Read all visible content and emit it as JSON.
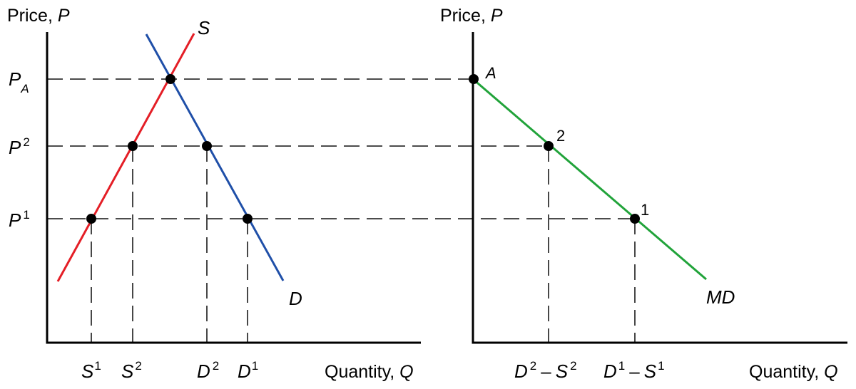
{
  "left_panel": {
    "y_axis_title": "Price,",
    "y_axis_symbol": "P",
    "x_axis_title": "Quantity,",
    "x_axis_symbol": "Q",
    "price_labels": {
      "pa": {
        "base": "P",
        "sub": "A"
      },
      "p2": {
        "base": "P",
        "sup": "2"
      },
      "p1": {
        "base": "P",
        "sup": "1"
      }
    },
    "quantity_labels": {
      "s1": {
        "base": "S",
        "sup": "1"
      },
      "s2": {
        "base": "S",
        "sup": "2"
      },
      "d2": {
        "base": "D",
        "sup": "2"
      },
      "d1": {
        "base": "D",
        "sup": "1"
      }
    },
    "supply_label": "S",
    "demand_label": "D"
  },
  "right_panel": {
    "y_axis_title": "Price,",
    "y_axis_symbol": "P",
    "x_axis_title": "Quantity,",
    "x_axis_symbol": "Q",
    "quantity_labels": {
      "q2": {
        "a": "D",
        "a_sup": "2",
        "op": "–",
        "b": "S",
        "b_sup": "2"
      },
      "q1": {
        "a": "D",
        "a_sup": "1",
        "op": "–",
        "b": "S",
        "b_sup": "1"
      }
    },
    "curve_label": "MD",
    "point_labels": {
      "a": "A",
      "two": "2",
      "one": "1"
    }
  },
  "colors": {
    "supply": "#e41e26",
    "demand": "#1f4fa8",
    "import_demand": "#21a33a",
    "guides": "#333333",
    "axes": "#000000"
  }
}
